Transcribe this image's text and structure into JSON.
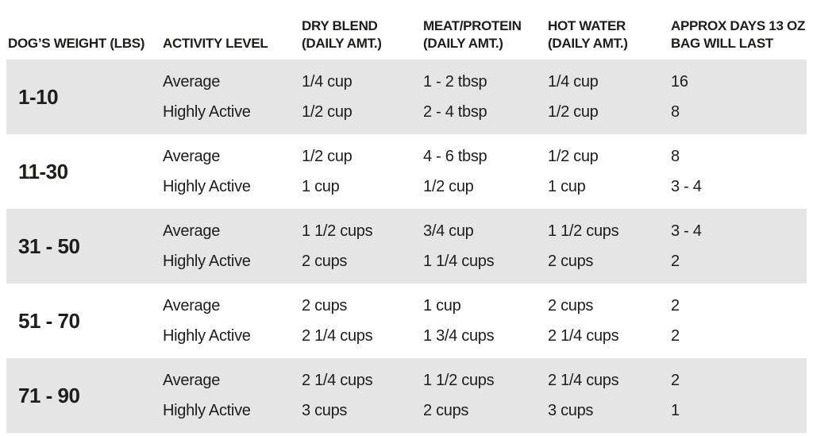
{
  "colors": {
    "band_gray": "#e5e5e5",
    "text": "#1d1d1b",
    "background": "#ffffff"
  },
  "table": {
    "headers": {
      "weight": "DOG’S WEIGHT (LBS)",
      "activity": "ACTIVITY LEVEL",
      "dry_line1": "DRY BLEND",
      "dry_line2": "(DAILY AMT.)",
      "meat_line1": "MEAT/PROTEIN",
      "meat_line2": "(DAILY AMT.)",
      "water_line1": "HOT WATER",
      "water_line2": "(DAILY AMT.)",
      "days_line1": "APPROX DAYS 13 OZ",
      "days_line2": "BAG WILL LAST"
    },
    "rows": [
      {
        "weight": "1-10",
        "entries": [
          {
            "activity": "Average",
            "dry_blend": "1/4 cup",
            "meat_protein": "1 - 2 tbsp",
            "hot_water": "1/4 cup",
            "days": "16"
          },
          {
            "activity": "Highly Active",
            "dry_blend": "1/2 cup",
            "meat_protein": "2 - 4 tbsp",
            "hot_water": "1/2 cup",
            "days": "8"
          }
        ]
      },
      {
        "weight": "11-30",
        "entries": [
          {
            "activity": "Average",
            "dry_blend": "1/2 cup",
            "meat_protein": "4 - 6 tbsp",
            "hot_water": "1/2 cup",
            "days": "8"
          },
          {
            "activity": "Highly Active",
            "dry_blend": "1 cup",
            "meat_protein": "1/2 cup",
            "hot_water": "1 cup",
            "days": "3 - 4"
          }
        ]
      },
      {
        "weight": "31 - 50",
        "entries": [
          {
            "activity": "Average",
            "dry_blend": "1 1/2 cups",
            "meat_protein": "3/4 cup",
            "hot_water": "1 1/2 cups",
            "days": "3 - 4"
          },
          {
            "activity": "Highly Active",
            "dry_blend": "2 cups",
            "meat_protein": "1 1/4 cups",
            "hot_water": "2 cups",
            "days": "2"
          }
        ]
      },
      {
        "weight": "51 - 70",
        "entries": [
          {
            "activity": "Average",
            "dry_blend": "2 cups",
            "meat_protein": "1 cup",
            "hot_water": "2 cups",
            "days": "2"
          },
          {
            "activity": "Highly Active",
            "dry_blend": "2 1/4 cups",
            "meat_protein": "1 3/4 cups",
            "hot_water": "2 1/4 cups",
            "days": "2"
          }
        ]
      },
      {
        "weight": "71 - 90",
        "entries": [
          {
            "activity": "Average",
            "dry_blend": "2 1/4 cups",
            "meat_protein": "1 1/2 cups",
            "hot_water": "2 1/4 cups",
            "days": "2"
          },
          {
            "activity": "Highly Active",
            "dry_blend": "3 cups",
            "meat_protein": "2 cups",
            "hot_water": "3 cups",
            "days": "1"
          }
        ]
      }
    ]
  },
  "chart_data": {
    "type": "table",
    "title": "Dog feeding guide",
    "columns": [
      "DOG’S WEIGHT (LBS)",
      "ACTIVITY LEVEL",
      "DRY BLEND (DAILY AMT.)",
      "MEAT/PROTEIN (DAILY AMT.)",
      "HOT WATER (DAILY AMT.)",
      "APPROX DAYS 13 OZ BAG WILL LAST"
    ],
    "rows": [
      [
        "1-10",
        "Average",
        "1/4 cup",
        "1 - 2 tbsp",
        "1/4 cup",
        "16"
      ],
      [
        "1-10",
        "Highly Active",
        "1/2 cup",
        "2 - 4 tbsp",
        "1/2 cup",
        "8"
      ],
      [
        "11-30",
        "Average",
        "1/2 cup",
        "4 - 6 tbsp",
        "1/2 cup",
        "8"
      ],
      [
        "11-30",
        "Highly Active",
        "1 cup",
        "1/2 cup",
        "1 cup",
        "3 - 4"
      ],
      [
        "31 - 50",
        "Average",
        "1 1/2 cups",
        "3/4 cup",
        "1 1/2 cups",
        "3 - 4"
      ],
      [
        "31 - 50",
        "Highly Active",
        "2 cups",
        "1 1/4 cups",
        "2 cups",
        "2"
      ],
      [
        "51 - 70",
        "Average",
        "2 cups",
        "1 cup",
        "2 cups",
        "2"
      ],
      [
        "51 - 70",
        "Highly Active",
        "2 1/4 cups",
        "1 3/4 cups",
        "2 1/4 cups",
        "2"
      ],
      [
        "71 - 90",
        "Average",
        "2 1/4 cups",
        "1 1/2 cups",
        "2 1/4 cups",
        "2"
      ],
      [
        "71 - 90",
        "Highly Active",
        "3 cups",
        "2 cups",
        "3 cups",
        "1"
      ]
    ],
    "layout": {
      "striped_rows": "odd rows gray #e5e5e5",
      "header_position": "top",
      "grid": false
    }
  }
}
